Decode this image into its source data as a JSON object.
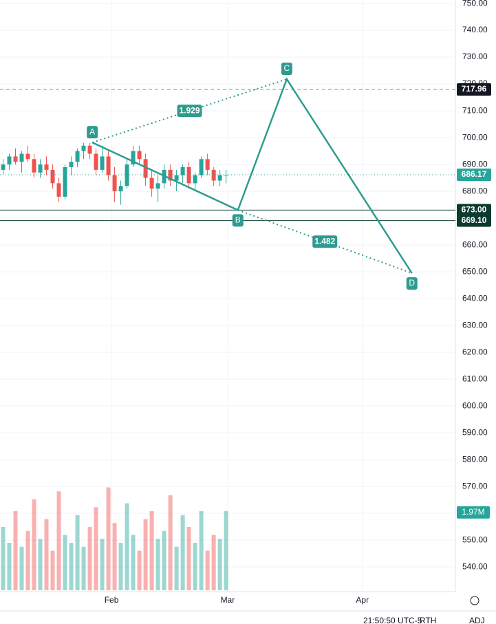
{
  "chart_data": {
    "type": "candlestick",
    "xlim": [
      -0.5,
      72.8
    ],
    "ylim": [
      530.8,
      751.3
    ],
    "xticks": [
      {
        "value": 17.5,
        "label": "Feb"
      },
      {
        "value": 36.25,
        "label": "Mar"
      },
      {
        "value": 58,
        "label": "Apr"
      }
    ],
    "yticks": [
      {
        "value": 540,
        "label": "540.00"
      },
      {
        "value": 550,
        "label": "550.00"
      },
      {
        "value": 560,
        "label": "560.00"
      },
      {
        "value": 570,
        "label": "570.00"
      },
      {
        "value": 580,
        "label": "580.00"
      },
      {
        "value": 590,
        "label": "590.00"
      },
      {
        "value": 600,
        "label": "600.00"
      },
      {
        "value": 610,
        "label": "610.00"
      },
      {
        "value": 620,
        "label": "620.00"
      },
      {
        "value": 630,
        "label": "630.00"
      },
      {
        "value": 640,
        "label": "640.00"
      },
      {
        "value": 650,
        "label": "650.00"
      },
      {
        "value": 660,
        "label": "660.00"
      },
      {
        "value": 670,
        "label": "670.00"
      },
      {
        "value": 680,
        "label": "680.00"
      },
      {
        "value": 690,
        "label": "690.00"
      },
      {
        "value": 700,
        "label": "700.00"
      },
      {
        "value": 710,
        "label": "710.00"
      },
      {
        "value": 720,
        "label": "720.00"
      },
      {
        "value": 730,
        "label": "730.00"
      },
      {
        "value": 740,
        "label": "740.00"
      },
      {
        "value": 750,
        "label": "750.00"
      }
    ],
    "grid": true,
    "up_color": "#26a69a",
    "down_color": "#ef5350",
    "open": [
      688,
      690,
      693,
      691,
      694,
      692,
      687,
      690,
      688,
      683,
      678,
      689,
      691,
      695,
      697,
      694,
      688,
      693,
      686,
      680,
      682,
      690,
      695,
      692,
      685,
      681,
      683,
      688,
      684,
      686,
      689,
      683,
      686,
      692,
      688,
      684,
      686
    ],
    "high": [
      692,
      694,
      696,
      695,
      697,
      694,
      692,
      693,
      690,
      685,
      690,
      693,
      696,
      698,
      698,
      696,
      697,
      695,
      689,
      684,
      692,
      697,
      697,
      694,
      688,
      686,
      690,
      690,
      688,
      690,
      691,
      687,
      693,
      694,
      689,
      688,
      688
    ],
    "low": [
      686,
      688,
      690,
      687,
      691,
      685,
      685,
      686,
      681,
      676,
      677,
      686,
      689,
      692,
      692,
      686,
      687,
      684,
      676,
      675,
      681,
      689,
      690,
      682,
      678,
      676,
      681,
      682,
      680,
      683,
      681,
      680,
      685,
      686,
      682,
      682,
      683
    ],
    "close": [
      690,
      693,
      691,
      694,
      692,
      687,
      690,
      688,
      683,
      678,
      689,
      691,
      695,
      697,
      694,
      688,
      693,
      686,
      680,
      682,
      690,
      695,
      692,
      685,
      681,
      683,
      688,
      684,
      686,
      689,
      683,
      686,
      692,
      688,
      684,
      686,
      686.17
    ],
    "volume": [
      1.6,
      1.2,
      2.0,
      1.1,
      1.5,
      2.3,
      1.3,
      1.8,
      1.0,
      2.5,
      1.4,
      1.2,
      1.9,
      1.1,
      1.6,
      2.1,
      1.3,
      2.6,
      1.7,
      1.2,
      2.2,
      1.4,
      1.0,
      1.8,
      2.0,
      1.3,
      1.5,
      2.4,
      1.1,
      1.9,
      1.6,
      1.2,
      2.0,
      1.0,
      1.4,
      1.3,
      2.0
    ],
    "volume_ylim": [
      0,
      4
    ],
    "volume_marker": {
      "value": 1.97,
      "label": "1.97M"
    },
    "pattern": {
      "color": "#2f9b8f",
      "points": [
        {
          "label": "A",
          "x": 14.4,
          "price": 698.2
        },
        {
          "label": "B",
          "x": 37.9,
          "price": 673
        },
        {
          "label": "C",
          "x": 45.8,
          "price": 721.8
        },
        {
          "label": "D",
          "x": 66,
          "price": 649.5
        }
      ],
      "ratios": [
        1.929,
        1.482
      ]
    },
    "price_lines": [
      {
        "value": 717.96,
        "style": "dashed",
        "color": "#000000"
      },
      {
        "value": 686.17,
        "style": "dotted",
        "color": "#26a69a"
      },
      {
        "value": 673,
        "label": "673.00",
        "style": "solid",
        "color": "#0c3b2e"
      },
      {
        "value": 669.1,
        "label": "669.10",
        "style": "solid",
        "color": "#0c3b2e"
      }
    ],
    "status": [
      "21:50:50 UTC-5",
      "RTH",
      "ADJ"
    ]
  }
}
